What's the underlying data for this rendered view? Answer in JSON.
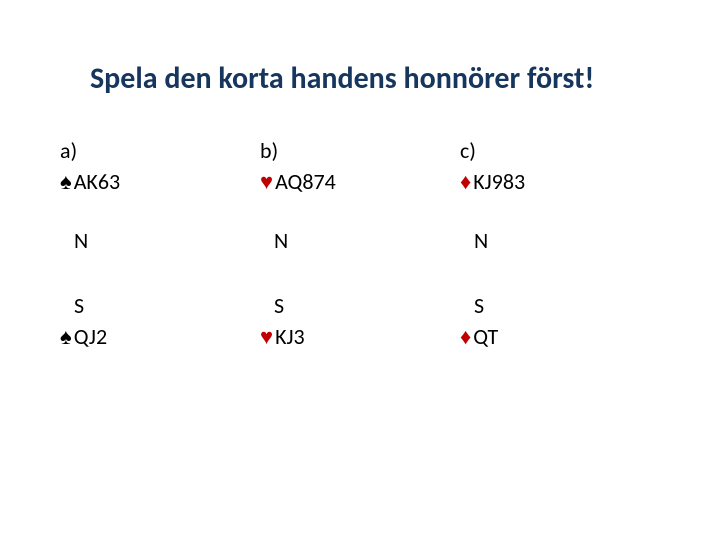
{
  "title": "Spela den korta handens honnörer först!",
  "colors": {
    "title": "#17365d",
    "black_suit": "#000000",
    "red_suit": "#c00000",
    "background": "#ffffff"
  },
  "columns": [
    {
      "label": "a)",
      "north_suit": "spade",
      "north_suit_glyph": "♠",
      "north_suit_color": "black",
      "north_cards": "AK63",
      "n_label": "N",
      "s_label": "S",
      "south_suit": "spade",
      "south_suit_glyph": "♠",
      "south_suit_color": "black",
      "south_cards": "QJ2"
    },
    {
      "label": "b)",
      "north_suit": "heart",
      "north_suit_glyph": "♥",
      "north_suit_color": "red",
      "north_cards": "AQ874",
      "n_label": "N",
      "s_label": "S",
      "south_suit": "heart",
      "south_suit_glyph": "♥",
      "south_suit_color": "red",
      "south_cards": "KJ3"
    },
    {
      "label": "c)",
      "north_suit": "diamond",
      "north_suit_glyph": "♦",
      "north_suit_color": "red",
      "north_cards": "KJ983",
      "n_label": "N",
      "s_label": "S",
      "south_suit": "diamond",
      "south_suit_glyph": "♦",
      "south_suit_color": "red",
      "south_cards": "QT"
    }
  ]
}
